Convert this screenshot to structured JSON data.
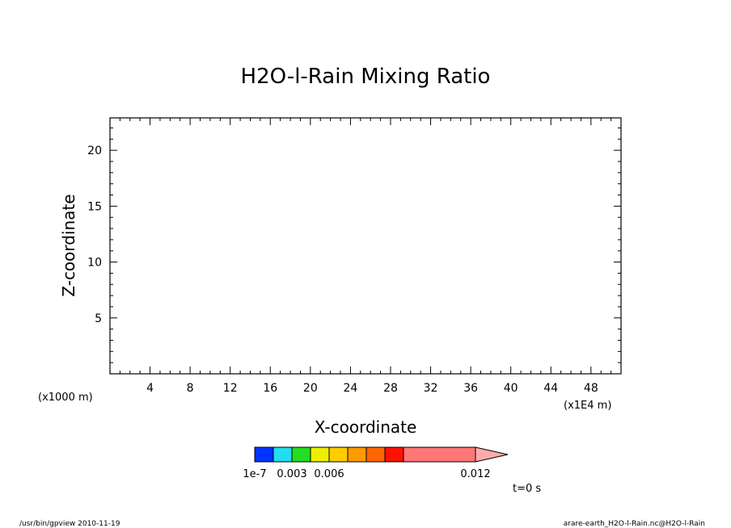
{
  "chart_data": {
    "type": "heatmap",
    "title": "H2O-l-Rain Mixing Ratio",
    "xlabel": "X-coordinate",
    "ylabel": "Z-coordinate",
    "x_unit": "(x1E4 m)",
    "y_unit": "(x1000 m)",
    "xlim": [
      0,
      51
    ],
    "ylim": [
      0,
      22.9
    ],
    "x_ticks": [
      4,
      8,
      12,
      16,
      20,
      24,
      28,
      32,
      36,
      40,
      44,
      48
    ],
    "y_ticks": [
      5,
      10,
      15,
      20
    ],
    "x_minor_step": 1,
    "y_minor_step": 1,
    "grid": false,
    "values": [],
    "colorbar": {
      "levels": [
        1e-07,
        0.0015,
        0.003,
        0.0045,
        0.006,
        0.0075,
        0.009,
        0.0105,
        0.012
      ],
      "colors": [
        "#0033ff",
        "#22ddee",
        "#22dd22",
        "#eeee00",
        "#ffcc00",
        "#ff9900",
        "#ff6600",
        "#ff1100",
        "#ff7777",
        "#ffaaaa"
      ],
      "labels": [
        {
          "text": "1e-7",
          "value": 1e-07
        },
        {
          "text": "0.003",
          "value": 0.003
        },
        {
          "text": "0.006",
          "value": 0.006
        },
        {
          "text": "0.012",
          "value": 0.012
        }
      ],
      "extend": "max"
    },
    "annotation": "t=0 s"
  },
  "footer": {
    "left": "/usr/bin/gpview  2010-11-19",
    "right": "arare-earth_H2O-l-Rain.nc@H2O-l-Rain"
  }
}
